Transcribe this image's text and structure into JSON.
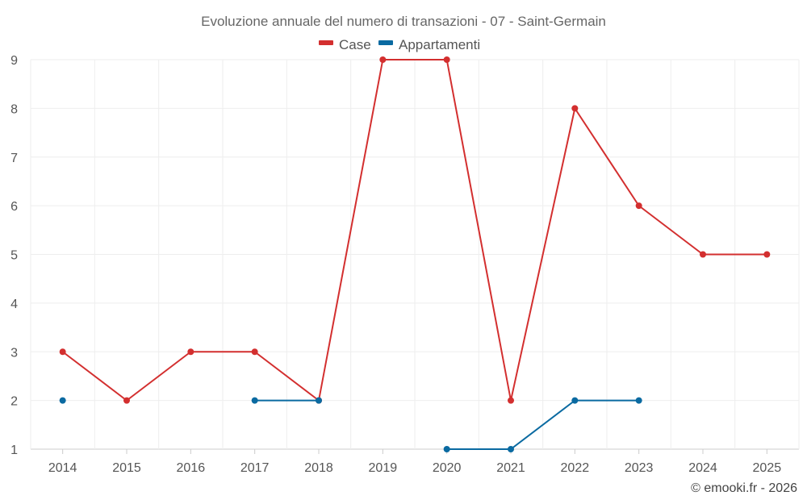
{
  "chart_data": {
    "type": "line",
    "title": "Evoluzione annuale del numero di transazioni - 07 - Saint-Germain",
    "xlabel": "",
    "ylabel": "",
    "x": [
      "2014",
      "2015",
      "2016",
      "2017",
      "2018",
      "2019",
      "2020",
      "2021",
      "2022",
      "2023",
      "2024",
      "2025"
    ],
    "ylim": [
      1,
      9
    ],
    "yticks": [
      "1",
      "2",
      "3",
      "4",
      "5",
      "6",
      "7",
      "8",
      "9"
    ],
    "grid": true,
    "legend_position": "top-center",
    "series": [
      {
        "name": "Case",
        "color": "#d32f2f",
        "values": [
          3,
          2,
          3,
          3,
          2,
          9,
          9,
          2,
          8,
          6,
          5,
          5
        ]
      },
      {
        "name": "Appartamenti",
        "color": "#0a6aa1",
        "values": [
          2,
          null,
          null,
          2,
          2,
          null,
          1,
          1,
          2,
          2,
          null,
          null
        ]
      }
    ]
  },
  "credit": "© emooki.fr - 2026"
}
